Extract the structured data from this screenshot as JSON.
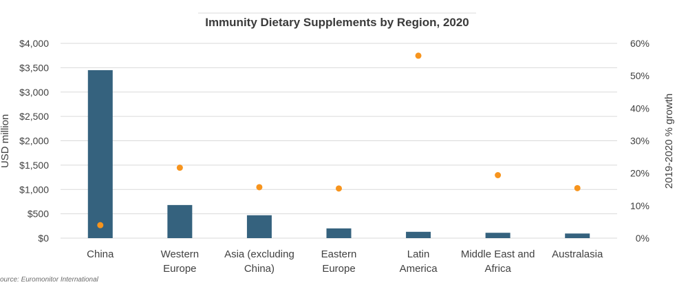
{
  "chart_data": {
    "type": "bar",
    "title": "Immunity Dietary Supplements by Region, 2020",
    "categories": [
      [
        "China"
      ],
      [
        "Western",
        "Europe"
      ],
      [
        "Asia (excluding",
        "China)"
      ],
      [
        "Eastern",
        "Europe"
      ],
      [
        "Latin",
        "America"
      ],
      [
        "Middle East and",
        "Africa"
      ],
      [
        "Australasia"
      ]
    ],
    "series": [
      {
        "type": "bar",
        "axis": "left",
        "values": [
          3450,
          680,
          470,
          200,
          130,
          110,
          95
        ]
      },
      {
        "type": "scatter",
        "axis": "right",
        "values": [
          4,
          21.7,
          15.7,
          15.3,
          56.2,
          19.4,
          15.4
        ]
      }
    ],
    "ylabel": "USD million",
    "y2label": "2019-2020 % growth",
    "ylim": [
      0,
      4000
    ],
    "y2lim": [
      0,
      60
    ],
    "yticks": [
      "$0",
      "$500",
      "$1,000",
      "$1,500",
      "$2,000",
      "$2,500",
      "$3,000",
      "$3,500",
      "$4,000"
    ],
    "y2ticks": [
      "0%",
      "10%",
      "20%",
      "30%",
      "40%",
      "50%",
      "60%"
    ],
    "grid": true,
    "colors": {
      "bar": "#35627e",
      "point": "#f7941d"
    }
  },
  "source": "ource: Euromonitor International"
}
